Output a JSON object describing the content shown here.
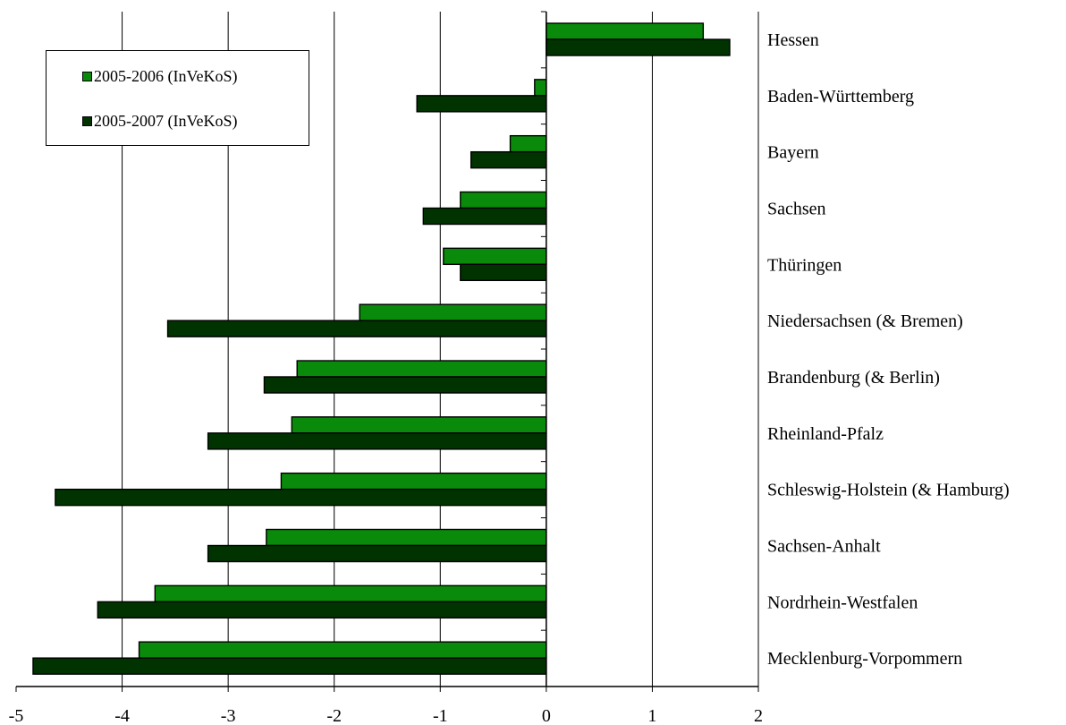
{
  "chart_data": {
    "type": "bar",
    "orientation": "horizontal",
    "categories": [
      "Hessen",
      "Baden-Württemberg",
      "Bayern",
      "Sachsen",
      "Thüringen",
      "Niedersachsen (& Bremen)",
      "Brandenburg (& Berlin)",
      "Rheinland-Pfalz",
      "Schleswig-Holstein (& Hamburg)",
      "Sachsen-Anhalt",
      "Nordrhein-Westfalen",
      "Mecklenburg-Vorpommern"
    ],
    "series": [
      {
        "name": "2005-2006 (InVeKoS)",
        "color": "#0a8a0a",
        "values": [
          1.48,
          -0.11,
          -0.34,
          -0.81,
          -0.97,
          -1.76,
          -2.35,
          -2.4,
          -2.5,
          -2.64,
          -3.69,
          -3.84
        ]
      },
      {
        "name": "2005-2007 (InVeKoS)",
        "color": "#003300",
        "values": [
          1.73,
          -1.22,
          -0.71,
          -1.16,
          -0.81,
          -3.57,
          -2.66,
          -3.19,
          -4.63,
          -3.19,
          -4.23,
          -4.84
        ]
      }
    ],
    "xlim": [
      -5,
      2
    ],
    "x_ticks": [
      "-5",
      "-4",
      "-3",
      "-2",
      "-1",
      "0",
      "1",
      "2"
    ],
    "grid": "vertical",
    "legend": "top-left",
    "title": "",
    "xlabel": "",
    "ylabel": ""
  }
}
